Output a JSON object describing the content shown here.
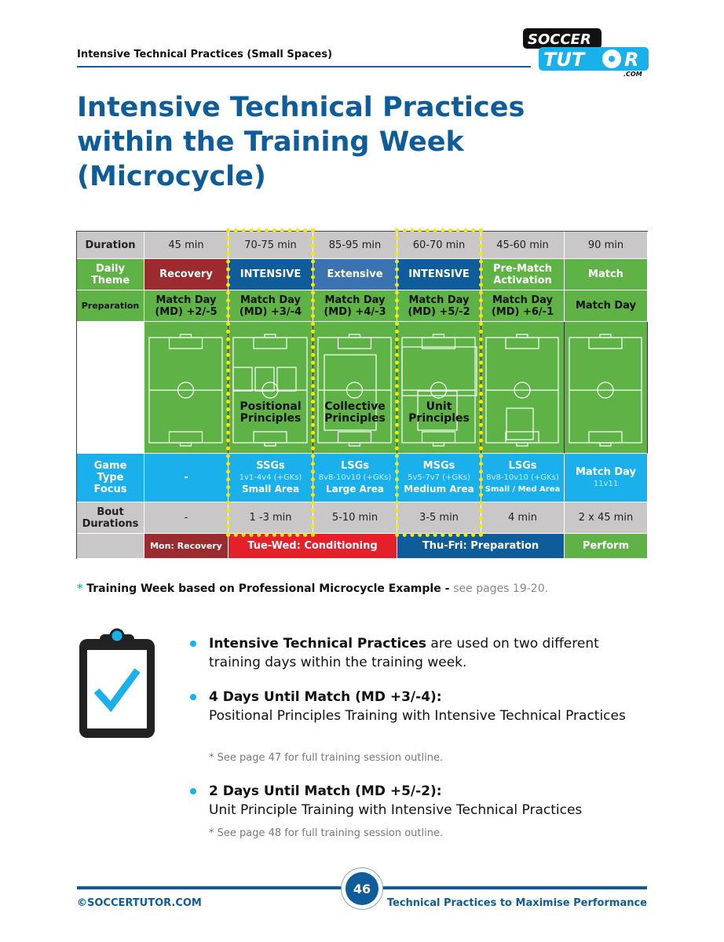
{
  "header": {
    "running_title": "Intensive Technical Practices (Small Spaces)",
    "logo": {
      "line1": "SOCCER",
      "line2": "TUTOR",
      "suffix": ".COM"
    }
  },
  "title": "Intensive Technical Practices within the Training Week (Microcycle)",
  "table": {
    "row_labels": {
      "duration": "Duration",
      "theme": "Daily Theme",
      "prep": "Preparation",
      "game": "Game Type Focus",
      "bout": "Bout Durations"
    },
    "columns": [
      {
        "duration": "45 min",
        "theme": "Recovery",
        "theme_color": "#9b2b2e",
        "prep": "Match Day (MD) +2/-5",
        "pitch_label": "",
        "game_title": "-",
        "game_sub": "",
        "game_area": "",
        "bout": "-"
      },
      {
        "duration": "70-75 min",
        "theme": "INTENSIVE",
        "theme_color": "#0f5c9a",
        "prep": "Match Day (MD) +3/-4",
        "pitch_label": "Positional Principles",
        "game_title": "SSGs",
        "game_sub": "1v1-4v4 (+GKs)",
        "game_area": "Small Area",
        "bout": "1 -3 min"
      },
      {
        "duration": "85-95 min",
        "theme": "Extensive",
        "theme_color": "#3a73b0",
        "prep": "Match Day (MD) +4/-3",
        "pitch_label": "Collective Principles",
        "game_title": "LSGs",
        "game_sub": "8v8-10v10 (+GKs)",
        "game_area": "Large Area",
        "bout": "5-10 min"
      },
      {
        "duration": "60-70 min",
        "theme": "INTENSIVE",
        "theme_color": "#0f5c9a",
        "prep": "Match Day (MD) +5/-2",
        "pitch_label": "Unit Principles",
        "game_title": "MSGs",
        "game_sub": "5v5-7v7 (+GKs)",
        "game_area": "Medium Area",
        "bout": "3-5 min"
      },
      {
        "duration": "45-60 min",
        "theme": "Pre-Match Activation",
        "theme_color": "#5fb346",
        "prep": "Match Day (MD) +6/-1",
        "pitch_label": "",
        "game_title": "LSGs",
        "game_sub": "8v8-10v10 (+GKs)",
        "game_area": "Small / Med Area",
        "bout": "4 min"
      },
      {
        "duration": "90 min",
        "theme": "Match",
        "theme_color": "#5fb346",
        "prep": "Match Day",
        "pitch_label": "",
        "game_title": "Match Day",
        "game_sub": "11v11",
        "game_area": "",
        "bout": "2 x 45 min"
      }
    ],
    "phases": [
      {
        "label": "Mon: Recovery",
        "color": "#9b2b2e"
      },
      {
        "label": "Tue-Wed: Conditioning",
        "color": "#e5202b"
      },
      {
        "label": "Thu-Fri: Preparation",
        "color": "#0f5c9a"
      },
      {
        "label": "Perform",
        "color": "#5fb346"
      }
    ]
  },
  "note": {
    "star": "*",
    "bold": "Training Week based on Professional Microcycle Example -",
    "ref": "see pages 19-20."
  },
  "bullets": [
    {
      "bold": "Intensive Technical Practices",
      "text": " are used on two different training days within the training week."
    },
    {
      "bold": "4 Days Until Match (MD +3/-4):",
      "text": "Positional Principles Training with Intensive Technical Practices",
      "sub": "* See page 47 for full training session outline."
    },
    {
      "bold": "2 Days Until Match (MD +5/-2):",
      "text": "Unit Principle Training with Intensive Technical Practices",
      "sub": "* See page 48 for full training session outline."
    }
  ],
  "footer": {
    "copyright": "©SOCCERTUTOR.COM",
    "page": "46",
    "book_title": "Technical Practices to Maximise Performance"
  }
}
